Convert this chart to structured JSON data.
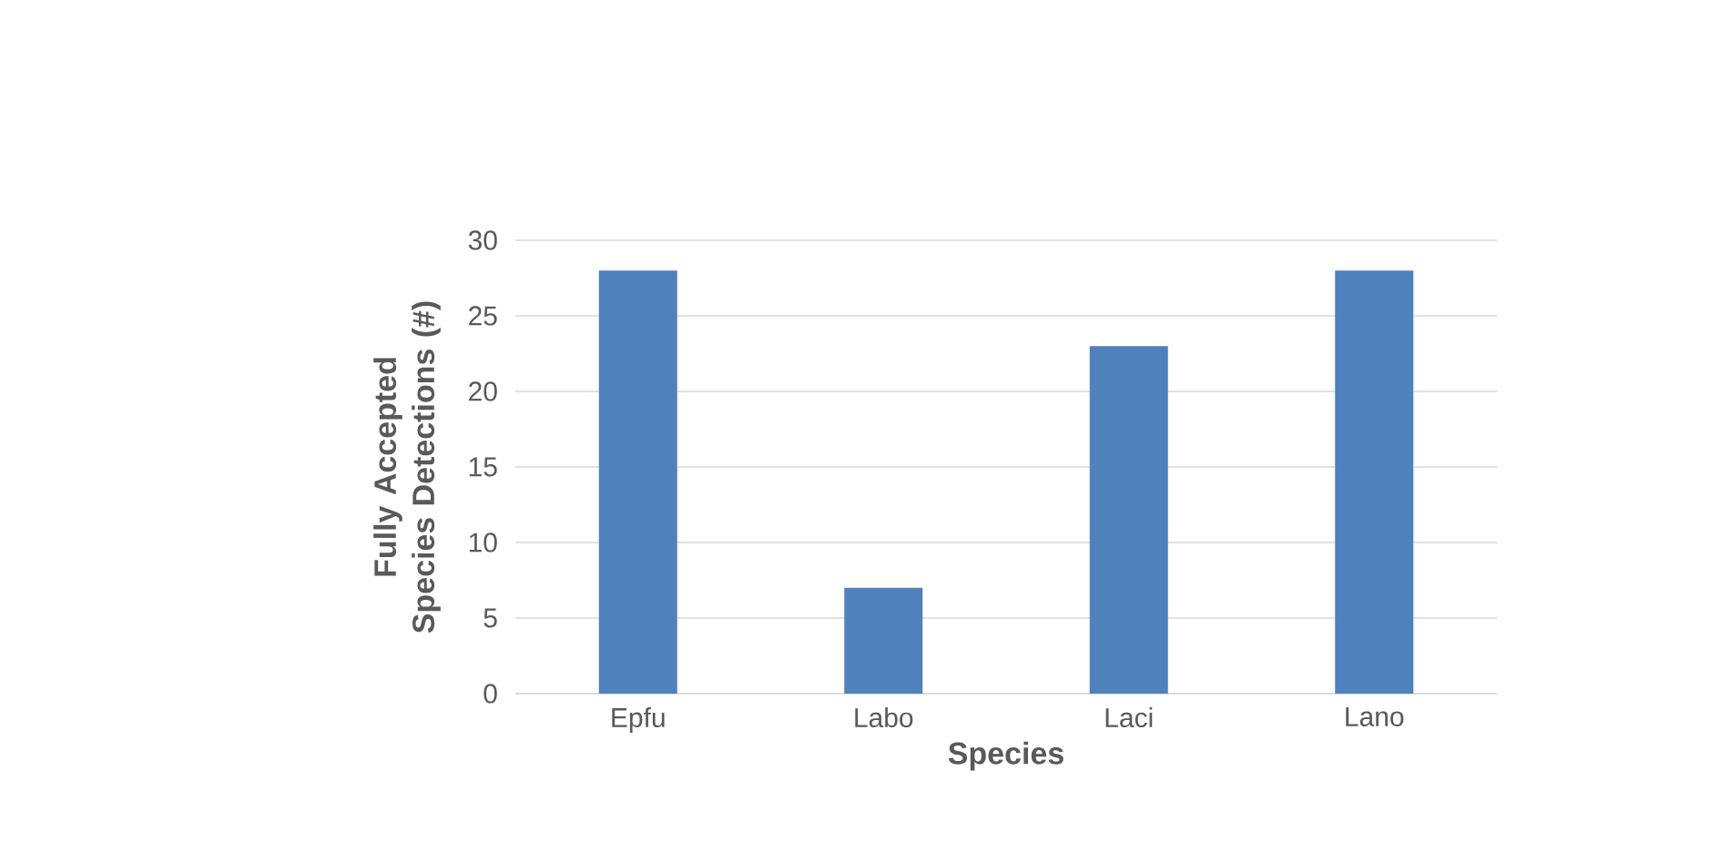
{
  "chart_data": {
    "type": "bar",
    "xlabel": "Species",
    "ylabel": "Fully Accepted Species Detections (#)",
    "categories": [
      "Epfu",
      "Labo",
      "Laci",
      "Lano"
    ],
    "values": [
      28,
      7,
      23,
      28
    ],
    "color": "#4f81bd",
    "ylim": [
      0,
      30
    ],
    "yticks": [
      0,
      5,
      10,
      15,
      20,
      25,
      30
    ],
    "grid": "y"
  }
}
